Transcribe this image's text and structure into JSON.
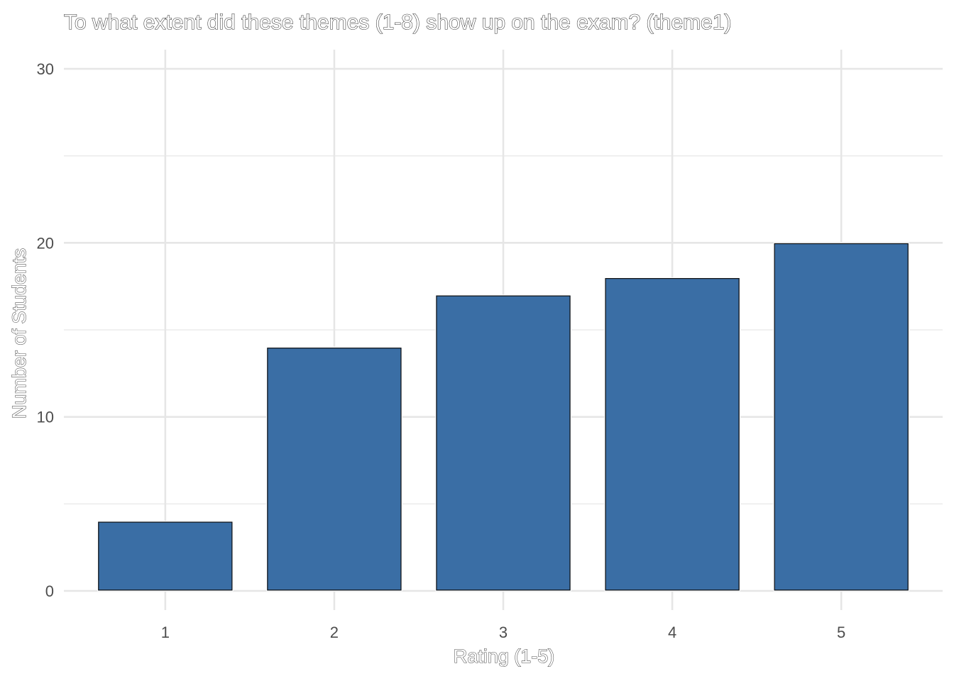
{
  "chart_data": {
    "type": "bar",
    "title": "To what extent did these themes (1-8) show up on the exam? (theme1)",
    "xlabel": "Rating (1-5)",
    "ylabel": "Number of Students",
    "categories": [
      "1",
      "2",
      "3",
      "4",
      "5"
    ],
    "values": [
      4,
      14,
      17,
      18,
      20
    ],
    "ylim": [
      -1.1,
      31.1
    ],
    "yticks": [
      0,
      10,
      20,
      30
    ],
    "ytick_labels": [
      "0",
      "10",
      "20",
      "30"
    ],
    "grid": true,
    "legend": "none",
    "bar_color": "#3a6ea5"
  }
}
